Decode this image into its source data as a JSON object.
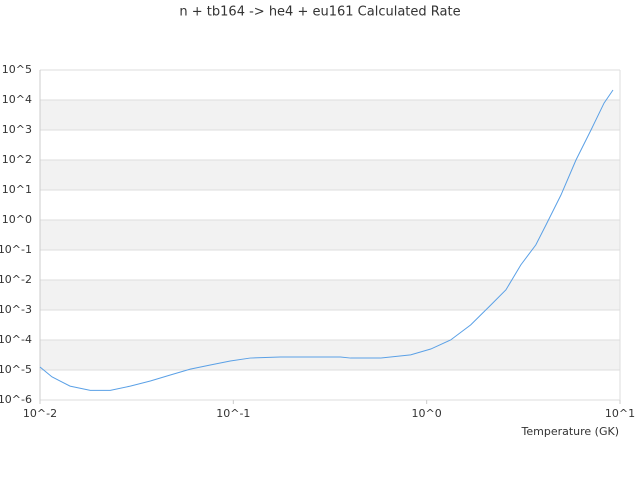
{
  "chart_data": {
    "type": "line",
    "title": "n + tb164 -> he4 + eu161 Calculated Rate",
    "x_label": "Temperature (GK)",
    "x": [
      0.01,
      0.01153,
      0.0143,
      0.0182,
      0.0231,
      0.0293,
      0.0372,
      0.0472,
      0.0599,
      0.076,
      0.0964,
      0.122,
      0.175,
      0.358,
      0.404,
      0.578,
      0.826,
      1.05,
      1.33,
      1.69,
      2.15,
      2.57,
      3.07,
      3.67,
      4.14,
      4.95,
      5.92,
      7.08,
      8.27,
      9.2
    ],
    "values": [
      1.26e-05,
      5.9e-06,
      2.9e-06,
      2.1e-06,
      2.1e-06,
      2.9e-06,
      4.3e-06,
      6.8e-06,
      1.07e-05,
      1.47e-05,
      2e-05,
      2.5e-05,
      2.7e-05,
      2.7e-05,
      2.5e-05,
      2.5e-05,
      3.2e-05,
      5e-05,
      0.0001,
      0.00032,
      0.00148,
      0.0047,
      0.032,
      0.148,
      0.68,
      6.8,
      100,
      1000,
      7900,
      21500
    ],
    "color": "#5aa0e6",
    "xscale": "log",
    "yscale": "log",
    "xlim": [
      0.01,
      10
    ],
    "ylim": [
      1e-06,
      100000
    ],
    "xticks": [
      {
        "value": 0.01,
        "label": "10^-2"
      },
      {
        "value": 0.1,
        "label": "10^-1"
      },
      {
        "value": 1,
        "label": "10^0"
      },
      {
        "value": 10,
        "label": "10^1"
      }
    ],
    "yticks": [
      {
        "value": 1e-06,
        "label": "10^-6"
      },
      {
        "value": 1e-05,
        "label": "10^-5"
      },
      {
        "value": 0.0001,
        "label": "10^-4"
      },
      {
        "value": 0.001,
        "label": "10^-3"
      },
      {
        "value": 0.01,
        "label": "10^-2"
      },
      {
        "value": 0.1,
        "label": "10^-1"
      },
      {
        "value": 1,
        "label": "10^0"
      },
      {
        "value": 10,
        "label": "10^1"
      },
      {
        "value": 100,
        "label": "10^2"
      },
      {
        "value": 1000,
        "label": "10^3"
      },
      {
        "value": 10000,
        "label": "10^4"
      },
      {
        "value": 100000,
        "label": "10^5"
      }
    ],
    "grid": true
  }
}
